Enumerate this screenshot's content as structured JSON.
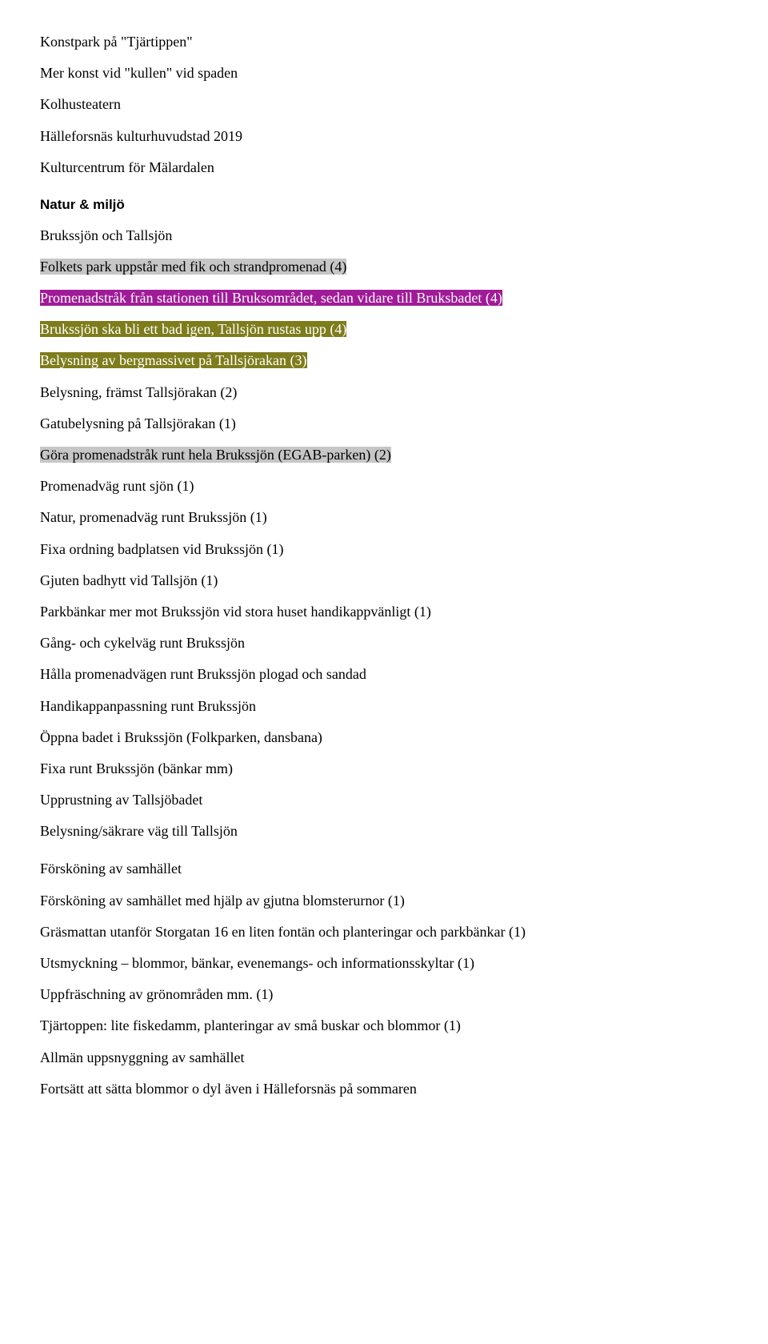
{
  "colors": {
    "highlight_purple": "#a01b98",
    "highlight_olive": "#7e7c1b",
    "highlight_grey": "#c6c6c6",
    "text": "#000000",
    "background": "#ffffff"
  },
  "typography": {
    "body_font": "Times New Roman",
    "body_size_pt": 13,
    "heading_font": "Arial",
    "heading_size_pt": 12,
    "heading_weight": "bold"
  },
  "intro_lines": [
    "Konstpark på \"Tjärtippen\"",
    "Mer konst vid \"kullen\" vid spaden",
    "Kolhusteatern",
    "Hälleforsnäs kulturhuvudstad 2019",
    "Kulturcentrum för Mälardalen"
  ],
  "heading_natur": "Natur & miljö",
  "natur_lines": [
    {
      "text": "Brukssjön och Tallsjön",
      "highlight": null
    },
    {
      "text": "Folkets park uppstår med fik och strandpromenad (4)",
      "highlight": "grey"
    },
    {
      "text": "Promenadstråk från stationen till Bruksområdet, sedan vidare till Bruksbadet (4)",
      "highlight": "purple"
    },
    {
      "text": "Brukssjön ska bli ett bad igen, Tallsjön rustas upp (4)",
      "highlight": "olive"
    },
    {
      "text": "Belysning av bergmassivet på Tallsjörakan (3)",
      "highlight": "olive"
    },
    {
      "text": "Belysning, främst Tallsjörakan (2)",
      "highlight": null
    },
    {
      "text": "Gatubelysning på Tallsjörakan (1)",
      "highlight": null
    },
    {
      "text": "Göra promenadstråk runt hela Brukssjön (EGAB-parken) (2)",
      "highlight": "grey"
    },
    {
      "text": "Promenadväg runt sjön (1)",
      "highlight": null
    },
    {
      "text": "Natur, promenadväg runt Brukssjön (1)",
      "highlight": null
    },
    {
      "text": "Fixa ordning badplatsen vid Brukssjön (1)",
      "highlight": null
    },
    {
      "text": "Gjuten badhytt vid Tallsjön (1)",
      "highlight": null
    },
    {
      "text": "Parkbänkar mer mot Brukssjön vid stora huset handikappvänligt (1)",
      "highlight": null
    },
    {
      "text": "Gång- och cykelväg runt Brukssjön",
      "highlight": null
    },
    {
      "text": "Hålla promenadvägen runt Brukssjön plogad och sandad",
      "highlight": null
    },
    {
      "text": "Handikappanpassning runt Brukssjön",
      "highlight": null
    },
    {
      "text": "Öppna badet i Brukssjön (Folkparken, dansbana)",
      "highlight": null
    },
    {
      "text": "Fixa runt Brukssjön (bänkar mm)",
      "highlight": null
    },
    {
      "text": "Upprustning av Tallsjöbadet",
      "highlight": null
    },
    {
      "text": "Belysning/säkrare väg till Tallsjön",
      "highlight": null
    }
  ],
  "subheading_forskoning": "Försköning av samhället",
  "forskoning_lines": [
    "Försköning av samhället med hjälp av gjutna blomsterurnor (1)",
    "Gräsmattan utanför Storgatan 16 en liten fontän och planteringar och parkbänkar (1)",
    "Utsmyckning – blommor, bänkar, evenemangs- och informationsskyltar (1)",
    "Uppfräschning av grönområden mm. (1)",
    "Tjärtoppen: lite fiskedamm, planteringar av små buskar och blommor (1)",
    "Allmän uppsnyggning av samhället",
    "Fortsätt att sätta blommor o dyl även i Hälleforsnäs på sommaren"
  ]
}
